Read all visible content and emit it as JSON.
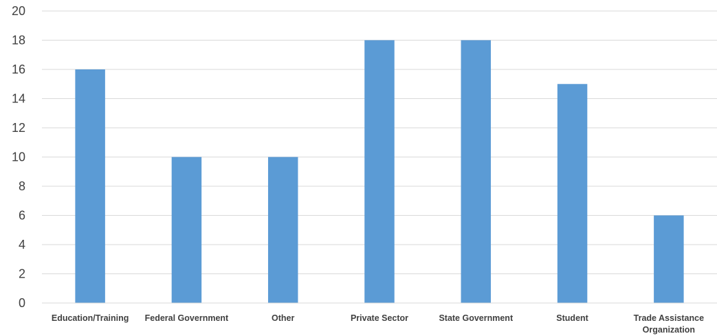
{
  "chart_data": {
    "type": "bar",
    "categories": [
      [
        "Education/Training"
      ],
      [
        "Federal Government"
      ],
      [
        "Other"
      ],
      [
        "Private Sector"
      ],
      [
        "State Government"
      ],
      [
        "Student"
      ],
      [
        "Trade Assistance",
        "Organization"
      ]
    ],
    "values": [
      16,
      10,
      10,
      18,
      18,
      15,
      6
    ],
    "yticks": [
      0,
      2,
      4,
      6,
      8,
      10,
      12,
      14,
      16,
      18,
      20
    ],
    "ylim": [
      0,
      20
    ],
    "title": "",
    "xlabel": "",
    "ylabel": "",
    "grid": true,
    "bar_color": "#5b9bd5",
    "grid_color": "#d9d9d9",
    "text_color": "#404040"
  }
}
